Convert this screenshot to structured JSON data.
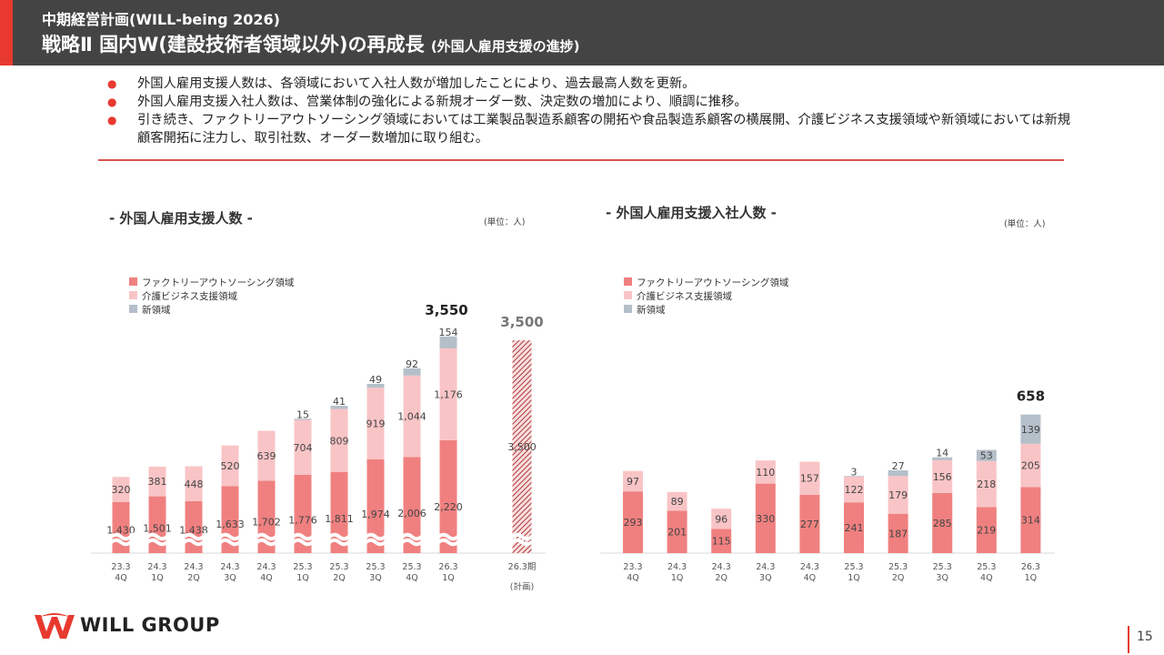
{
  "header": {
    "subtitle": "中期経営計画(WILL-being 2026)",
    "title": "戦略Ⅱ 国内W(建設技術者領域以外)の再成長",
    "title_small": "(外国人雇用支援の進捗)"
  },
  "bullets": [
    "外国人雇用支援人数は、各領域において入社人数が増加したことにより、過去最高人数を更新。",
    "外国人雇用支援入社人数は、営業体制の強化による新規オーダー数、決定数の増加により、順調に推移。",
    "引き続き、ファクトリーアウトソーシング領域においては工業製品製造系顧客の開拓や食品製造系顧客の横展開、介護ビジネス支援領域や新領域においては新規顧客開拓に注力し、取引社数、オーダー数増加に取り組む。"
  ],
  "chart_data": [
    {
      "type": "bar",
      "stacked": true,
      "title": "- 外国人雇用支援人数 -",
      "unit": "(単位：人)",
      "categories": [
        "23.3\n4Q",
        "24.3\n1Q",
        "24.3\n2Q",
        "24.3\n3Q",
        "24.3\n4Q",
        "25.3\n1Q",
        "25.3\n2Q",
        "25.3\n3Q",
        "25.3\n4Q",
        "26.3\n1Q"
      ],
      "series": [
        {
          "name": "ファクトリーアウトソーシング領域",
          "color": "#f08080",
          "values": [
            1430,
            1501,
            1438,
            1633,
            1702,
            1776,
            1811,
            1974,
            2006,
            2220
          ]
        },
        {
          "name": "介護ビジネス支援領域",
          "color": "#f9c4c6",
          "values": [
            320,
            381,
            448,
            520,
            639,
            704,
            809,
            919,
            1044,
            1176
          ]
        },
        {
          "name": "新領域",
          "color": "#b5bfc9",
          "values": [
            null,
            null,
            null,
            null,
            null,
            15,
            41,
            49,
            92,
            154
          ]
        }
      ],
      "total_label": "3,550",
      "plan": {
        "category": "26.3期",
        "sub": "(計画)",
        "value": 3500,
        "label": "3,500",
        "inner_label": "3,500"
      },
      "axis_break": true,
      "legend_position": "top-left"
    },
    {
      "type": "bar",
      "stacked": true,
      "title": "- 外国人雇用支援入社人数 -",
      "unit": "(単位：人)",
      "categories": [
        "23.3\n4Q",
        "24.3\n1Q",
        "24.3\n2Q",
        "24.3\n3Q",
        "24.3\n4Q",
        "25.3\n1Q",
        "25.3\n2Q",
        "25.3\n3Q",
        "25.3\n4Q",
        "26.3\n1Q"
      ],
      "series": [
        {
          "name": "ファクトリーアウトソーシング領域",
          "color": "#f08080",
          "values": [
            293,
            201,
            115,
            330,
            277,
            241,
            187,
            285,
            219,
            314
          ]
        },
        {
          "name": "介護ビジネス支援領域",
          "color": "#f9c4c6",
          "values": [
            97,
            89,
            96,
            110,
            157,
            122,
            179,
            156,
            218,
            205
          ]
        },
        {
          "name": "新領域",
          "color": "#b5bfc9",
          "values": [
            null,
            null,
            null,
            null,
            null,
            3,
            27,
            14,
            53,
            139
          ]
        }
      ],
      "total_label": "658",
      "legend_position": "top-left"
    }
  ],
  "footer": {
    "logo_text": "WILL GROUP",
    "page": "15"
  }
}
